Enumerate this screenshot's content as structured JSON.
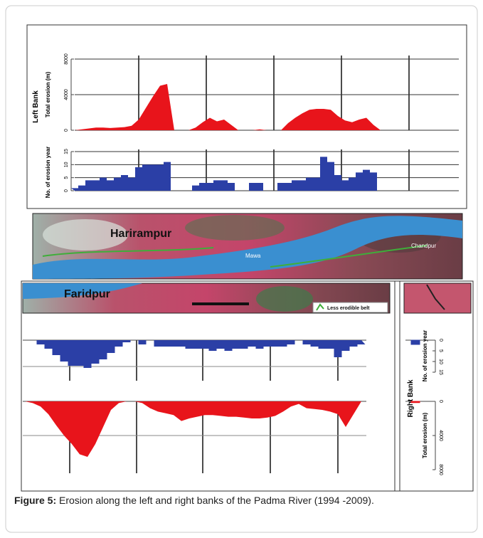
{
  "figure": {
    "left_bank": {
      "label": "Left Bank",
      "erosion_label": "Total erosion (m)",
      "erosion_ticks": [
        0,
        4000,
        8000
      ],
      "years_label": "No. of erosion year",
      "years_ticks": [
        0,
        5,
        10,
        15
      ],
      "erosion": [
        0,
        100,
        200,
        300,
        300,
        250,
        300,
        350,
        500,
        1200,
        2500,
        3800,
        5000,
        5200,
        0,
        0,
        0,
        300,
        900,
        1400,
        1000,
        1200,
        600,
        0,
        0,
        0,
        100,
        0,
        0,
        0,
        800,
        1400,
        1900,
        2300,
        2400,
        2400,
        2300,
        1600,
        1100,
        900,
        1200,
        1400,
        600,
        0
      ],
      "years": [
        1,
        2,
        4,
        4,
        5,
        4,
        5,
        6,
        5,
        9,
        10,
        10,
        10,
        11,
        0,
        0,
        0,
        2,
        3,
        3,
        4,
        4,
        3,
        0,
        0,
        3,
        3,
        0,
        0,
        3,
        3,
        4,
        4,
        5,
        5,
        13,
        11,
        6,
        4,
        5,
        7,
        8,
        7,
        0
      ]
    },
    "right_bank": {
      "label": "Right Bank",
      "erosion_label": "Total erosion (m)",
      "erosion_ticks": [
        0,
        4000,
        8000
      ],
      "years_label": "No. of erosion year",
      "years_ticks": [
        0,
        5,
        10,
        15
      ],
      "erosion": [
        0,
        200,
        600,
        1500,
        2800,
        4000,
        5000,
        6200,
        6500,
        5000,
        3000,
        1000,
        200,
        0,
        0,
        200,
        800,
        1200,
        1400,
        1600,
        2300,
        2000,
        1800,
        1600,
        1600,
        1700,
        1800,
        1800,
        1900,
        2000,
        2000,
        1900,
        1700,
        1200,
        600,
        300,
        800,
        900,
        1000,
        1200,
        1500,
        3000,
        1500,
        0
      ],
      "years": [
        0,
        0,
        2,
        4,
        7,
        10,
        12,
        12,
        13,
        11,
        9,
        6,
        3,
        1,
        0,
        2,
        0,
        3,
        3,
        3,
        3,
        4,
        4,
        4,
        5,
        4,
        5,
        4,
        4,
        3,
        4,
        3,
        3,
        3,
        2,
        0,
        2,
        3,
        4,
        4,
        8,
        5,
        3,
        2
      ],
      "east_erosion": [
        150,
        150
      ],
      "east_years": [
        2,
        2
      ]
    },
    "map": {
      "harirampur": "Harirampur",
      "faridpur": "Faridpur",
      "mawa": "Mawa",
      "chandpur": "Chandpur",
      "legend": "Less erodible belt"
    },
    "caption": {
      "label": "Figure 5:",
      "text": " Erosion along the left and right banks of the Padma River (1994 -2009)."
    }
  }
}
